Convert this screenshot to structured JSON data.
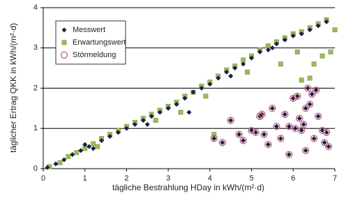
{
  "chart_data": {
    "type": "scatter",
    "xlabel": "tägliche Bestrahlung HDay in kWh/(m²·d)",
    "ylabel": "täglicher Ertrag QKK in kWh/(m²·d)",
    "xlim": [
      0,
      7
    ],
    "xticks": [
      0,
      1,
      2,
      3,
      4,
      5,
      6,
      7
    ],
    "ylim": [
      0,
      4
    ],
    "yticks": [
      0,
      1,
      2,
      3,
      4
    ],
    "grid": true,
    "legend": "upper left",
    "series": [
      {
        "name": "Messwert",
        "color": "#1c1c4a",
        "marker": "diamond",
        "x": [
          0.1,
          0.3,
          0.5,
          0.7,
          0.9,
          1.1,
          1.2,
          1.4,
          1.6,
          1.8,
          2.0,
          2.2,
          2.4,
          2.6,
          2.8,
          3.0,
          3.2,
          3.4,
          3.6,
          3.8,
          4.0,
          4.2,
          4.4,
          4.6,
          4.8,
          5.0,
          5.2,
          5.4,
          5.6,
          5.8,
          6.0,
          6.2,
          6.4,
          6.6,
          6.8,
          1.0,
          2.5,
          3.5,
          4.5,
          5.5,
          4.1,
          4.3,
          4.5,
          4.7,
          4.8,
          5.0,
          5.1,
          5.2,
          5.25,
          5.3,
          5.4,
          5.5,
          5.6,
          5.7,
          5.8,
          5.9,
          5.9,
          6.0,
          6.05,
          6.1,
          6.15,
          6.2,
          6.25,
          6.3,
          6.35,
          6.4,
          6.45,
          6.5,
          6.55,
          6.6,
          6.7,
          6.75,
          6.8,
          6.85,
          6.3
        ],
        "values": [
          0.03,
          0.12,
          0.22,
          0.35,
          0.45,
          0.55,
          0.5,
          0.7,
          0.8,
          0.9,
          1.0,
          1.1,
          1.2,
          1.3,
          1.4,
          1.5,
          1.6,
          1.75,
          1.9,
          2.0,
          2.1,
          2.25,
          2.4,
          2.5,
          2.6,
          2.75,
          2.9,
          2.95,
          3.1,
          3.2,
          3.3,
          3.35,
          3.45,
          3.55,
          3.65,
          0.6,
          1.1,
          1.4,
          2.3,
          3.0,
          0.75,
          0.65,
          1.2,
          0.85,
          0.7,
          0.95,
          0.9,
          1.3,
          1.35,
          0.85,
          0.6,
          1.5,
          1.05,
          0.75,
          1.35,
          0.35,
          1.05,
          1.75,
          1.0,
          1.8,
          1.25,
          0.95,
          1.1,
          0.45,
          2.0,
          1.6,
          1.85,
          0.75,
          1.95,
          1.3,
          0.95,
          0.65,
          0.9,
          0.55,
          1.5
        ]
      },
      {
        "name": "Erwartungswert",
        "color": "#9bbb59",
        "marker": "square",
        "x": [
          0.15,
          0.4,
          0.6,
          0.8,
          1.0,
          1.2,
          1.4,
          1.6,
          1.8,
          2.0,
          2.2,
          2.4,
          2.6,
          2.8,
          3.0,
          3.2,
          3.4,
          3.6,
          3.8,
          4.0,
          4.2,
          4.4,
          4.6,
          4.8,
          5.0,
          5.2,
          5.4,
          5.6,
          5.8,
          6.0,
          6.2,
          6.4,
          6.6,
          6.8,
          7.0,
          1.3,
          2.7,
          3.9,
          4.1,
          5.7,
          6.2,
          6.4,
          6.5,
          6.7,
          6.9,
          6.1,
          4.9,
          3.3
        ],
        "values": [
          0.05,
          0.15,
          0.3,
          0.4,
          0.5,
          0.62,
          0.75,
          0.85,
          0.95,
          1.05,
          1.15,
          1.25,
          1.35,
          1.45,
          1.55,
          1.65,
          1.8,
          1.9,
          2.05,
          2.15,
          2.3,
          2.45,
          2.55,
          2.7,
          2.8,
          2.95,
          3.05,
          3.15,
          3.25,
          3.35,
          3.4,
          3.5,
          3.6,
          3.7,
          3.45,
          0.55,
          1.2,
          1.8,
          0.85,
          2.6,
          2.2,
          2.25,
          2.6,
          2.8,
          2.9,
          2.9,
          2.4,
          1.4
        ]
      },
      {
        "name": "Störmeldung",
        "color": "#c0607a",
        "marker": "circle",
        "x": [
          4.1,
          4.3,
          4.5,
          4.7,
          4.8,
          5.0,
          5.1,
          5.2,
          5.25,
          5.3,
          5.4,
          5.5,
          5.6,
          5.7,
          5.8,
          5.9,
          5.9,
          6.0,
          6.05,
          6.1,
          6.15,
          6.2,
          6.25,
          6.3,
          6.35,
          6.4,
          6.45,
          6.5,
          6.55,
          6.6,
          6.7,
          6.75,
          6.8,
          6.85,
          6.3
        ],
        "values": [
          0.75,
          0.65,
          1.2,
          0.85,
          0.7,
          0.95,
          0.9,
          1.3,
          1.35,
          0.85,
          0.6,
          1.5,
          1.05,
          0.75,
          1.35,
          0.35,
          1.05,
          1.75,
          1.0,
          1.8,
          1.25,
          0.95,
          1.1,
          0.45,
          2.0,
          1.6,
          1.85,
          0.75,
          1.95,
          1.3,
          0.95,
          0.65,
          0.9,
          0.55,
          1.5
        ]
      }
    ]
  }
}
